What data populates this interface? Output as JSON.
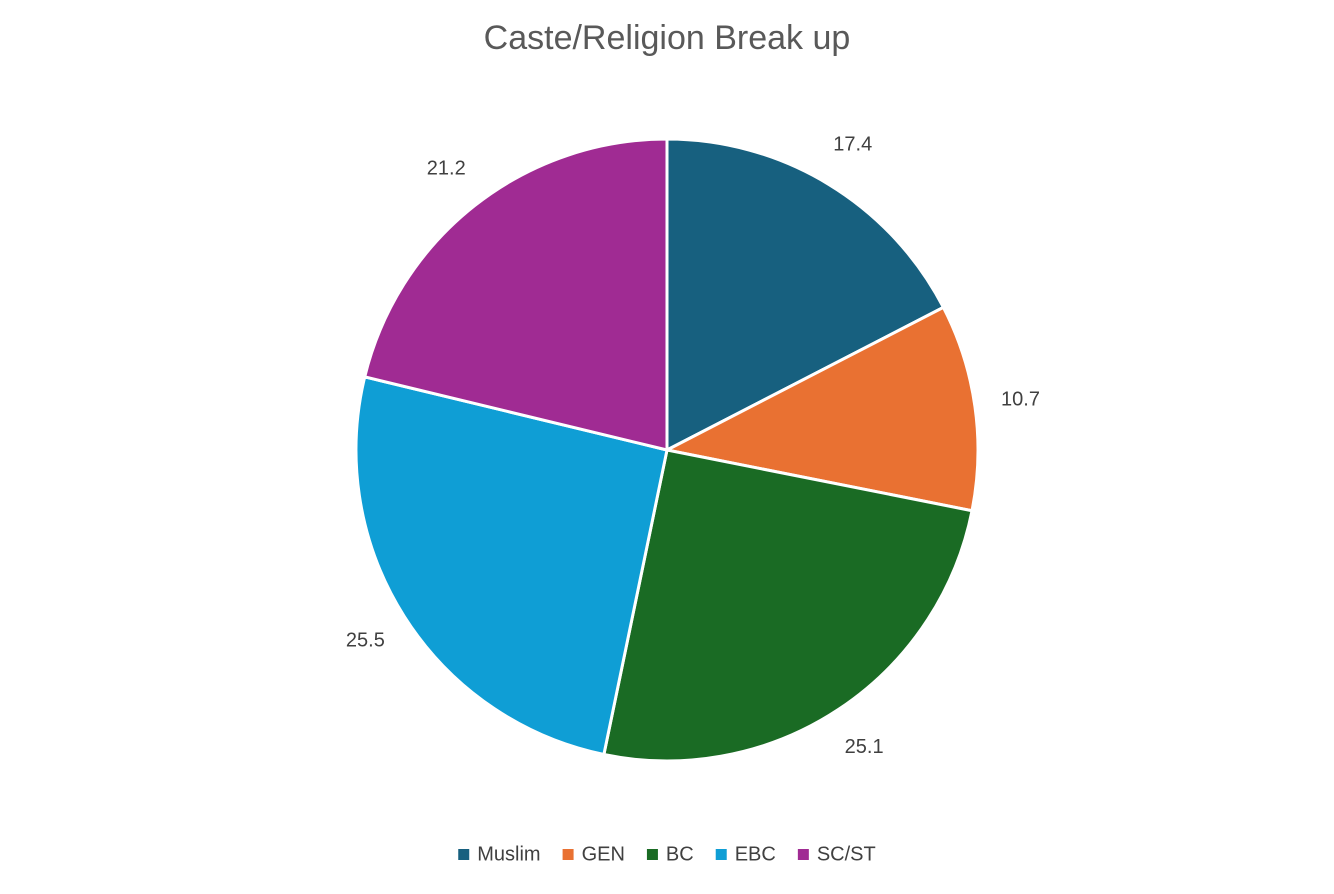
{
  "chart_data": {
    "type": "pie",
    "title": "Caste/Religion Break up",
    "categories": [
      "Muslim",
      "GEN",
      "BC",
      "EBC",
      "SC/ST"
    ],
    "values": [
      17.4,
      10.7,
      25.1,
      25.5,
      21.2
    ],
    "colors": [
      "#17607f",
      "#e97132",
      "#1a6b24",
      "#0f9ed5",
      "#a02b93"
    ],
    "legend": "bottom"
  }
}
